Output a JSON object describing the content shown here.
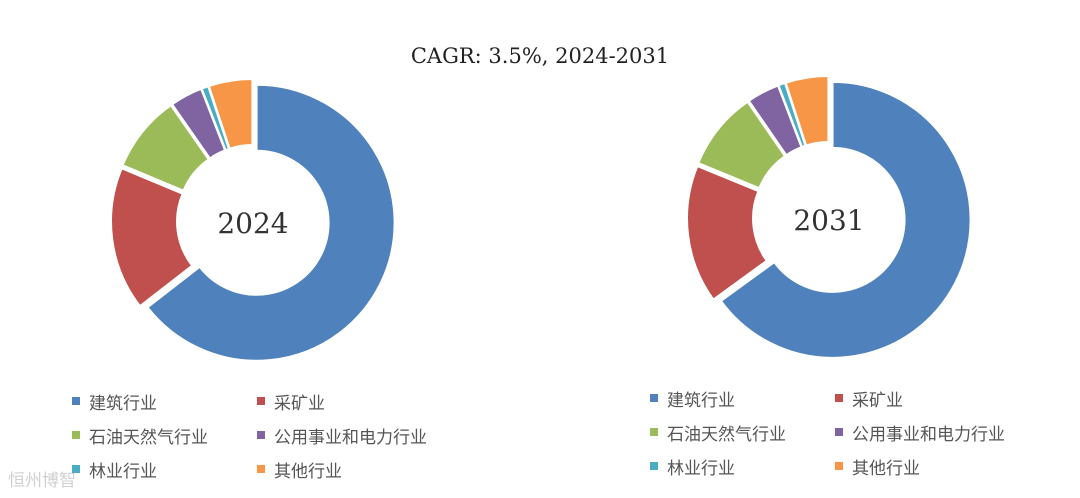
{
  "watermark": "恒州博智",
  "chart_data": {
    "type": "donut",
    "title": "CAGR:   3.5%, 2024-2031",
    "categories": [
      "建筑行业",
      "采矿业",
      "石油天然气行业",
      "公用事业和电力行业",
      "林业行业",
      "其他行业"
    ],
    "colors": [
      "#4F81BD",
      "#C0504D",
      "#9BBB59",
      "#8064A2",
      "#4BACC6",
      "#F79646"
    ],
    "charts": [
      {
        "center_label": "2024",
        "values": [
          64.5,
          16.8,
          9.0,
          3.8,
          0.8,
          5.1
        ]
      },
      {
        "center_label": "2031",
        "values": [
          65.0,
          16.2,
          9.2,
          3.8,
          0.8,
          5.0
        ]
      }
    ]
  }
}
